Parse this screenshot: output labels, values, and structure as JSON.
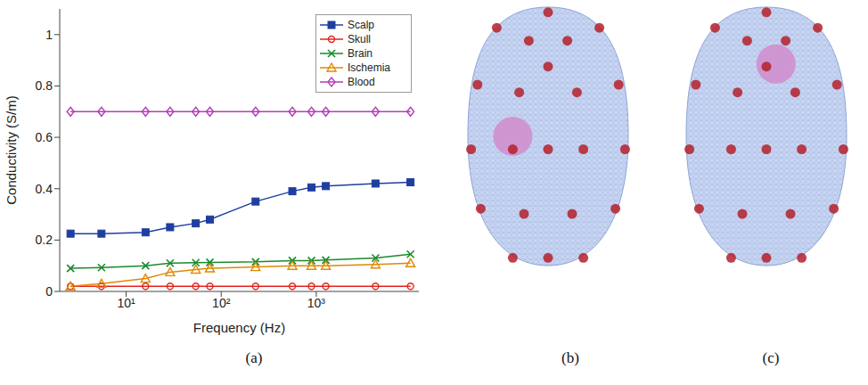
{
  "panels": [
    "(a)",
    "(b)",
    "(c)"
  ],
  "chart_data": {
    "type": "line",
    "x_label": "Frequency (Hz)",
    "y_label": "Conductivity (S/m)",
    "log": "x",
    "grid": false,
    "legend": "upper right",
    "x": [
      2.6,
      5.5,
      16,
      29,
      54,
      76,
      230,
      560,
      890,
      1260,
      4200,
      9800
    ],
    "xlim": [
      2,
      12000
    ],
    "xticks": [
      {
        "value": 10,
        "label": "10¹"
      },
      {
        "value": 100,
        "label": "10²"
      },
      {
        "value": 1000,
        "label": "10³"
      }
    ],
    "ylim": [
      0,
      1.1
    ],
    "yticks": [
      0,
      0.2,
      0.4,
      0.6,
      0.8,
      1
    ],
    "series": [
      {
        "name": "Scalp",
        "color": "#1f3f9f",
        "marker": "square",
        "line_style": "solid",
        "values": [
          0.225,
          0.225,
          0.23,
          0.25,
          0.265,
          0.28,
          0.35,
          0.39,
          0.405,
          0.41,
          0.42,
          0.425
        ]
      },
      {
        "name": "Skull",
        "color": "#e3231d",
        "marker": "circle",
        "line_style": "solid",
        "values": [
          0.02,
          0.02,
          0.02,
          0.02,
          0.02,
          0.02,
          0.02,
          0.02,
          0.02,
          0.02,
          0.02,
          0.02
        ]
      },
      {
        "name": "Brain",
        "color": "#1a8a2e",
        "marker": "x",
        "line_style": "solid",
        "values": [
          0.09,
          0.093,
          0.1,
          0.11,
          0.112,
          0.113,
          0.115,
          0.12,
          0.12,
          0.122,
          0.13,
          0.145
        ]
      },
      {
        "name": "Ischemia",
        "color": "#e08a00",
        "marker": "triangle",
        "line_style": "solid",
        "values": [
          0.02,
          0.03,
          0.05,
          0.075,
          0.085,
          0.09,
          0.095,
          0.1,
          0.1,
          0.1,
          0.105,
          0.11
        ]
      },
      {
        "name": "Blood",
        "color": "#b23fb5",
        "marker": "diamond",
        "line_style": "solid",
        "values": [
          0.7,
          0.7,
          0.7,
          0.7,
          0.7,
          0.7,
          0.7,
          0.7,
          0.7,
          0.7,
          0.7,
          0.7
        ]
      }
    ]
  }
}
